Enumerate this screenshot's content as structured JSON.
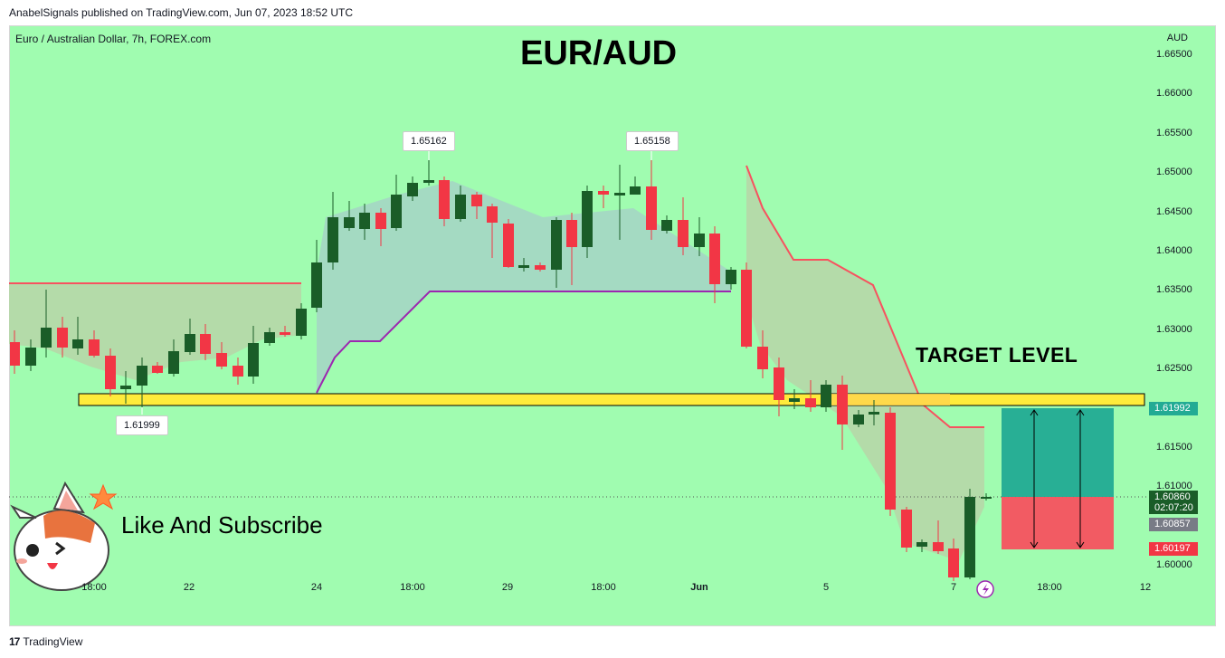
{
  "header": {
    "published": "AnabelSignals published on TradingView.com, Jun 07, 2023 18:52 UTC"
  },
  "chart": {
    "symbol": "Euro / Australian Dollar, 7h, FOREX.com",
    "currency": "AUD",
    "title": "EUR/AUD",
    "target_label": "TARGET LEVEL",
    "promo_text": "Like And Subscribe",
    "y_ticks": [
      "1.66500",
      "1.66000",
      "1.65500",
      "1.65000",
      "1.64500",
      "1.64000",
      "1.63500",
      "1.63000",
      "1.62500",
      "1.61500",
      "1.61000",
      "1.60000"
    ],
    "x_ticks": [
      "18:00",
      "22",
      "24",
      "18:00",
      "29",
      "18:00",
      "Jun",
      "5",
      "7",
      "18:00",
      "12"
    ],
    "price_tags": {
      "target": "1.61992",
      "last_price": "1.60860",
      "countdown": "02:07:20",
      "mid": "1.60857",
      "stop": "1.60197"
    },
    "callouts": {
      "high1": "1.65162",
      "high2": "1.65158",
      "low": "1.61999"
    },
    "colors": {
      "bg": "#a0fcb0",
      "up": "#1a5d28",
      "down": "#f23645",
      "target_band": "#ffeb3b",
      "profit": "#22ab94",
      "loss": "#f7525f",
      "tag_green": "#22ab94",
      "tag_red": "#f23645"
    }
  },
  "footer": {
    "brand": "TradingView",
    "logo_icon": "tradingview-logo-icon"
  }
}
